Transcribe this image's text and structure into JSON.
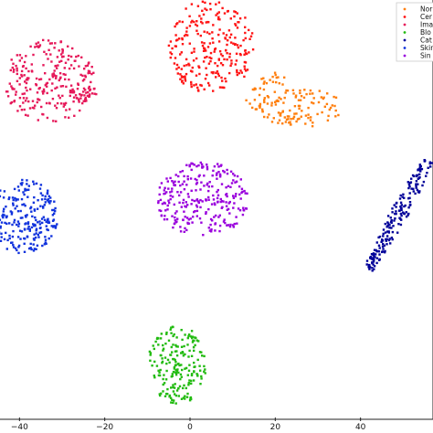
{
  "chart_data": {
    "type": "scatter",
    "title": "",
    "xlabel": "",
    "ylabel": "",
    "xlim": [
      -45,
      57
    ],
    "ylim": [
      -50,
      46
    ],
    "grid": false,
    "x_ticks": [
      -40,
      -20,
      0,
      20,
      40
    ],
    "x_tick_labels": [
      "−40",
      "−20",
      "0",
      "20",
      "40"
    ],
    "legend": {
      "placement": "top-right",
      "entries": [
        "Nor",
        "Cer",
        "Ima",
        "Blo",
        "Cat",
        "Skin",
        "Sin"
      ]
    },
    "series": [
      {
        "name": "Nor",
        "color": "#ff7f0e",
        "clusters": [
          {
            "cx": 26,
            "cy": 21,
            "rx": 10,
            "ry": 4.5,
            "n": 110,
            "shape": "ellipse"
          },
          {
            "cx": 16,
            "cy": 23,
            "rx": 3,
            "ry": 2.5,
            "n": 18,
            "shape": "ellipse"
          },
          {
            "cx": 20,
            "cy": 27.5,
            "rx": 4,
            "ry": 1.6,
            "n": 16,
            "shape": "ellipse"
          }
        ]
      },
      {
        "name": "Cer",
        "color": "#ff1414",
        "clusters": [
          {
            "cx": 5,
            "cy": 35,
            "rx": 10,
            "ry": 11,
            "n": 240,
            "shape": "ellipse"
          },
          {
            "cx": -1.5,
            "cy": 28,
            "rx": 1,
            "ry": 1.6,
            "n": 12,
            "shape": "ellipse"
          }
        ]
      },
      {
        "name": "Ima",
        "color": "#e6195a",
        "clusters": [
          {
            "cx": -33,
            "cy": 27,
            "rx": 11,
            "ry": 9.5,
            "n": 260,
            "shape": "ellipse"
          },
          {
            "cx": -24,
            "cy": 23.5,
            "rx": 3,
            "ry": 1.2,
            "n": 14,
            "shape": "ellipse"
          }
        ]
      },
      {
        "name": "Blo",
        "color": "#22bb11",
        "clusters": [
          {
            "cx": -3,
            "cy": -38,
            "rx": 7,
            "ry": 9,
            "n": 200,
            "shape": "ellipse"
          }
        ]
      },
      {
        "name": "Cat",
        "color": "#000099",
        "clusters": [
          {
            "x0": 42,
            "y0": -16,
            "x1": 56,
            "y1": 9,
            "width": 4,
            "n": 190,
            "shape": "band"
          }
        ]
      },
      {
        "name": "Skin",
        "color": "#1133dd",
        "clusters": [
          {
            "cx": -39,
            "cy": -4,
            "rx": 8,
            "ry": 8.5,
            "n": 240,
            "shape": "ellipse"
          }
        ]
      },
      {
        "name": "Sin",
        "color": "#9900dd",
        "clusters": [
          {
            "cx": 3,
            "cy": 0,
            "rx": 11,
            "ry": 8.5,
            "n": 270,
            "shape": "ellipse"
          }
        ]
      }
    ]
  }
}
